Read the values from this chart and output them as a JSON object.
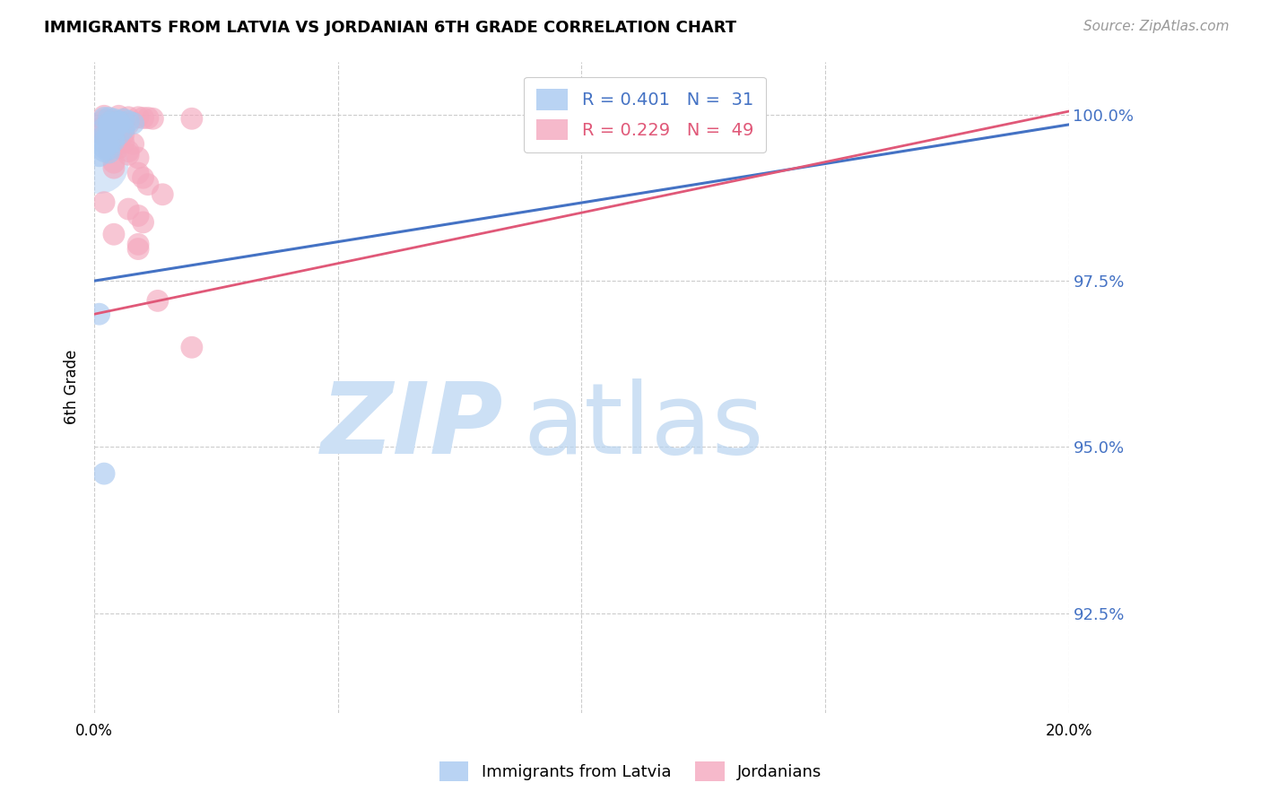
{
  "title": "IMMIGRANTS FROM LATVIA VS JORDANIAN 6TH GRADE CORRELATION CHART",
  "source": "Source: ZipAtlas.com",
  "ylabel": "6th Grade",
  "ytick_labels": [
    "100.0%",
    "97.5%",
    "95.0%",
    "92.5%"
  ],
  "ytick_values": [
    1.0,
    0.975,
    0.95,
    0.925
  ],
  "xlim": [
    0.0,
    0.2
  ],
  "ylim": [
    0.91,
    1.008
  ],
  "blue_color": "#a8c8f0",
  "pink_color": "#f4a8be",
  "blue_line_color": "#4472C4",
  "pink_line_color": "#E05878",
  "blue_scatter": [
    [
      0.002,
      0.9995
    ],
    [
      0.003,
      0.9995
    ],
    [
      0.004,
      0.9993
    ],
    [
      0.006,
      0.9993
    ],
    [
      0.005,
      0.999
    ],
    [
      0.007,
      0.999
    ],
    [
      0.003,
      0.9988
    ],
    [
      0.005,
      0.9988
    ],
    [
      0.008,
      0.9987
    ],
    [
      0.003,
      0.9985
    ],
    [
      0.005,
      0.9985
    ],
    [
      0.004,
      0.9982
    ],
    [
      0.002,
      0.998
    ],
    [
      0.004,
      0.9978
    ],
    [
      0.006,
      0.9978
    ],
    [
      0.003,
      0.9975
    ],
    [
      0.003,
      0.9972
    ],
    [
      0.005,
      0.997
    ],
    [
      0.002,
      0.9968
    ],
    [
      0.004,
      0.9965
    ],
    [
      0.002,
      0.9962
    ],
    [
      0.004,
      0.996
    ],
    [
      0.002,
      0.9958
    ],
    [
      0.003,
      0.9955
    ],
    [
      0.002,
      0.995
    ],
    [
      0.003,
      0.9948
    ],
    [
      0.002,
      0.9945
    ],
    [
      0.003,
      0.9943
    ],
    [
      0.001,
      0.9938
    ],
    [
      0.001,
      0.97
    ],
    [
      0.002,
      0.946
    ]
  ],
  "pink_scatter": [
    [
      0.002,
      0.9998
    ],
    [
      0.005,
      0.9998
    ],
    [
      0.007,
      0.9996
    ],
    [
      0.009,
      0.9996
    ],
    [
      0.01,
      0.9995
    ],
    [
      0.011,
      0.9995
    ],
    [
      0.012,
      0.9994
    ],
    [
      0.02,
      0.9994
    ],
    [
      0.002,
      0.9992
    ],
    [
      0.003,
      0.999
    ],
    [
      0.004,
      0.999
    ],
    [
      0.005,
      0.9988
    ],
    [
      0.006,
      0.9988
    ],
    [
      0.007,
      0.9986
    ],
    [
      0.002,
      0.9984
    ],
    [
      0.003,
      0.9982
    ],
    [
      0.004,
      0.998
    ],
    [
      0.006,
      0.9978
    ],
    [
      0.002,
      0.9975
    ],
    [
      0.003,
      0.9973
    ],
    [
      0.004,
      0.9972
    ],
    [
      0.006,
      0.997
    ],
    [
      0.002,
      0.9968
    ],
    [
      0.005,
      0.9965
    ],
    [
      0.004,
      0.9962
    ],
    [
      0.005,
      0.996
    ],
    [
      0.006,
      0.9958
    ],
    [
      0.008,
      0.9956
    ],
    [
      0.004,
      0.9952
    ],
    [
      0.005,
      0.995
    ],
    [
      0.003,
      0.9948
    ],
    [
      0.007,
      0.9945
    ],
    [
      0.007,
      0.994
    ],
    [
      0.009,
      0.9935
    ],
    [
      0.004,
      0.9928
    ],
    [
      0.004,
      0.992
    ],
    [
      0.009,
      0.9912
    ],
    [
      0.01,
      0.9905
    ],
    [
      0.011,
      0.9895
    ],
    [
      0.014,
      0.988
    ],
    [
      0.002,
      0.9868
    ],
    [
      0.007,
      0.9858
    ],
    [
      0.009,
      0.9848
    ],
    [
      0.01,
      0.9838
    ],
    [
      0.004,
      0.982
    ],
    [
      0.009,
      0.9805
    ],
    [
      0.009,
      0.9798
    ],
    [
      0.013,
      0.972
    ],
    [
      0.02,
      0.965
    ]
  ],
  "large_blue_dot": [
    0.001,
    0.9925
  ],
  "blue_line_pts": [
    [
      0.0,
      0.975
    ],
    [
      0.2,
      0.9985
    ]
  ],
  "pink_line_pts": [
    [
      0.0,
      0.97
    ],
    [
      0.2,
      1.0005
    ]
  ],
  "watermark_zip": "ZIP",
  "watermark_atlas": "atlas",
  "background_color": "#ffffff"
}
